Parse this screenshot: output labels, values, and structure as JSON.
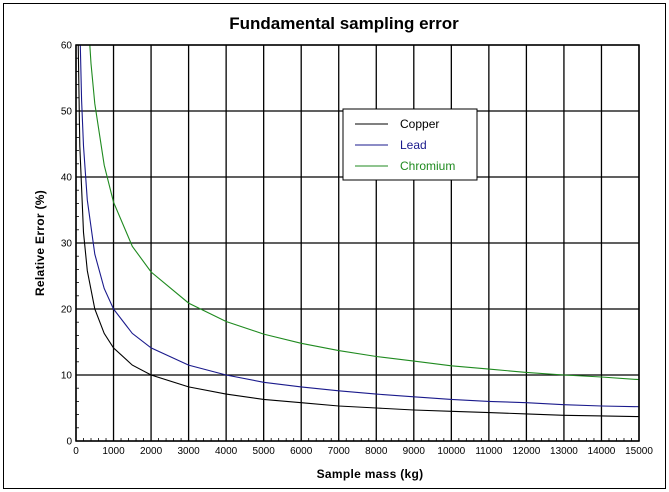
{
  "chart_data": {
    "type": "line",
    "title": "Fundamental sampling error",
    "xlabel": "Sample mass (kg)",
    "ylabel": "Relative Error (%)",
    "xlim": [
      0,
      15000
    ],
    "ylim": [
      0,
      60
    ],
    "x_ticks": [
      0,
      1000,
      2000,
      3000,
      4000,
      5000,
      6000,
      7000,
      8000,
      9000,
      10000,
      11000,
      12000,
      13000,
      14000,
      15000
    ],
    "y_ticks": [
      0,
      10,
      20,
      30,
      40,
      50,
      60
    ],
    "grid": true,
    "legend_position": "top-right",
    "series": [
      {
        "name": "Copper",
        "color": "#000000",
        "x": [
          50,
          100,
          200,
          300,
          500,
          750,
          1000,
          1500,
          2000,
          3000,
          4000,
          5000,
          6000,
          7000,
          8000,
          9000,
          10000,
          11000,
          12000,
          13000,
          14000,
          15000
        ],
        "y": [
          63.2,
          44.7,
          31.6,
          25.8,
          20.0,
          16.3,
          14.1,
          11.5,
          10.0,
          8.2,
          7.1,
          6.3,
          5.8,
          5.3,
          5.0,
          4.7,
          4.5,
          4.3,
          4.1,
          3.9,
          3.8,
          3.7
        ]
      },
      {
        "name": "Lead",
        "color": "#1a1a8c",
        "x": [
          100,
          150,
          200,
          300,
          500,
          750,
          1000,
          1500,
          2000,
          3000,
          4000,
          5000,
          6000,
          7000,
          8000,
          9000,
          10000,
          11000,
          12000,
          13000,
          14000,
          15000
        ],
        "y": [
          63.2,
          51.6,
          44.7,
          36.5,
          28.3,
          23.1,
          20.0,
          16.3,
          14.1,
          11.5,
          10.0,
          8.9,
          8.2,
          7.6,
          7.1,
          6.7,
          6.3,
          6.0,
          5.8,
          5.5,
          5.3,
          5.2
        ]
      },
      {
        "name": "Chromium",
        "color": "#1f8a1f",
        "x": [
          300,
          400,
          500,
          750,
          1000,
          1500,
          2000,
          3000,
          4000,
          5000,
          6000,
          7000,
          8000,
          9000,
          10000,
          11000,
          12000,
          13000,
          14000,
          15000
        ],
        "y": [
          66.0,
          57.2,
          51.1,
          41.8,
          36.2,
          29.5,
          25.6,
          20.9,
          18.1,
          16.2,
          14.8,
          13.7,
          12.8,
          12.1,
          11.4,
          10.9,
          10.4,
          10.0,
          9.7,
          9.3
        ]
      }
    ]
  }
}
